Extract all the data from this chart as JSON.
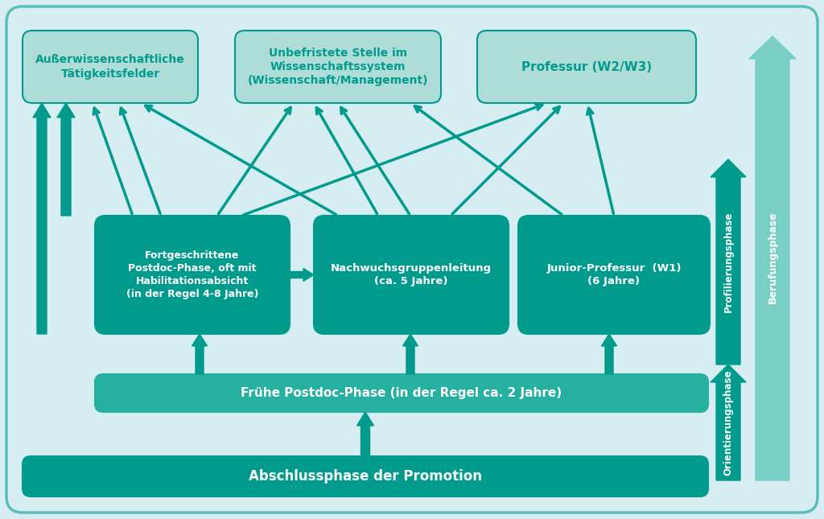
{
  "bg": "#d6edf2",
  "teal_dark": "#009b8d",
  "teal_mid": "#26b0a0",
  "teal_light": "#7acfc4",
  "teal_box_light": "#aeddd8",
  "border_color": "#5bbfb5",
  "box_abschluss_text": "Abschlussphase der Promotion",
  "box_frueh_text": "Frühe Postdoc-Phase (in der Regel ca. 2 Jahre)",
  "box_fortgeschritten_text": "Fortgeschrittene\nPostdoc-Phase, oft mit\nHabilitationsabsicht\n(in der Regel 4-8 Jahre)",
  "box_nachwuchs_text": "Nachwuchsgruppenleitung\n(ca. 5 Jahre)",
  "box_junior_text": "Junior-Professur  (W1)\n(6 Jahre)",
  "box_aussen_text": "Außerwissenschaftliche\nTätigkeitsfelder",
  "box_unbefristet_text": "Unbefristete Stelle im\nWissenschaftssystem\n(Wissenschaft/Management)",
  "box_professur_text": "Professur (W2/W3)",
  "phase_orientierung_text": "Orientierungsphase",
  "phase_profilierung_text": "Profilierungsphase",
  "phase_berufung_text": "Berufungsphase",
  "white": "#ffffff"
}
